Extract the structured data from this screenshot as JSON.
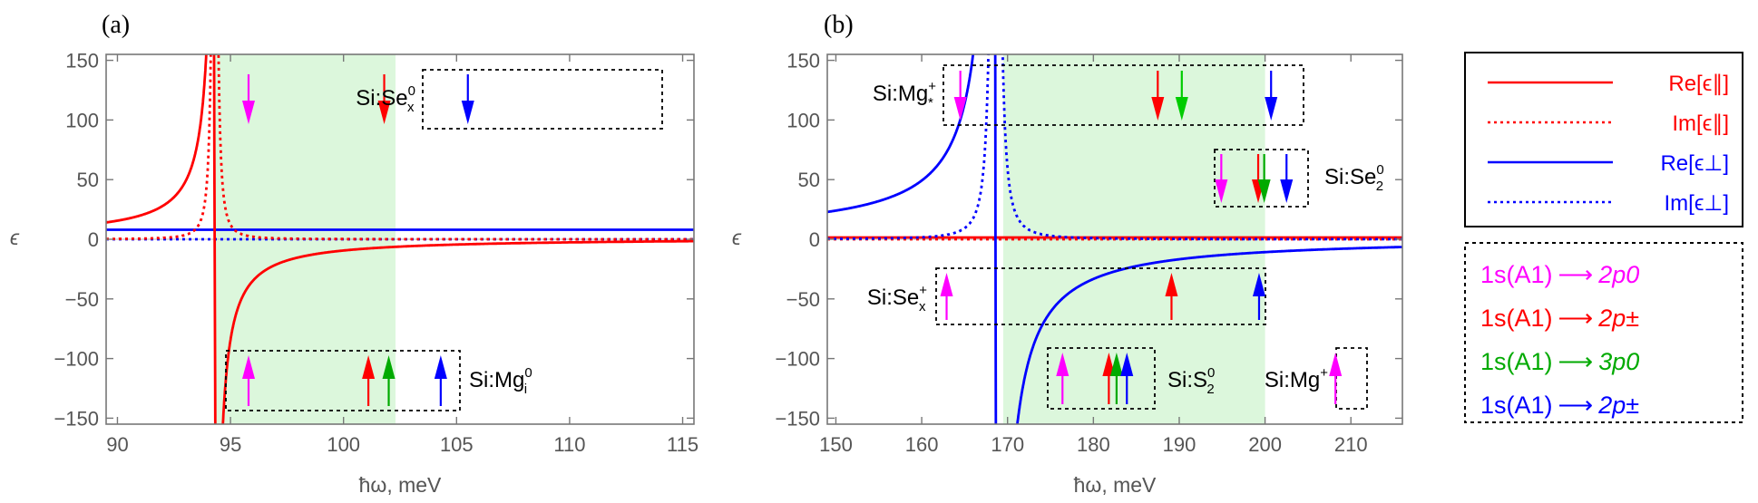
{
  "chart_data": [
    {
      "panel": "(a)",
      "type": "line",
      "xlabel": "ħω, meV",
      "ylabel": "ϵ",
      "xlim": [
        89.5,
        115.5
      ],
      "ylim": [
        -155,
        155
      ],
      "xticks": [
        90,
        95,
        100,
        105,
        110,
        115
      ],
      "yticks": [
        -150,
        -100,
        -50,
        0,
        50,
        100,
        150
      ],
      "shaded_region": [
        94.3,
        102.3
      ],
      "resonance": {
        "omega0": 94.3,
        "gamma": 0.2,
        "re_base_parallel": 1.0,
        "amplitude_parallel": 1.3,
        "re_perp": 8.0,
        "im_perp": 0.0
      },
      "series": [
        {
          "name": "Re[ϵ∥]",
          "color": "#ff0000",
          "dash": "solid"
        },
        {
          "name": "Im[ϵ∥]",
          "color": "#ff0000",
          "dash": "dotted"
        },
        {
          "name": "Re[ϵ⊥]",
          "color": "#0000ff",
          "dash": "solid"
        },
        {
          "name": "Im[ϵ⊥]",
          "color": "#0000ff",
          "dash": "dotted"
        }
      ],
      "annotations": [
        {
          "label": "Si:Se",
          "sub": "x",
          "sup": "0",
          "arrows": [
            {
              "x": 95.8,
              "dir": "down",
              "color": "#ff00ff"
            },
            {
              "x": 101.8,
              "dir": "down",
              "color": "#ff0000"
            },
            {
              "x": 105.5,
              "dir": "down",
              "color": "#0000ff"
            }
          ]
        },
        {
          "label": "Si:Mg",
          "sub": "i",
          "sup": "0",
          "arrows": [
            {
              "x": 95.8,
              "dir": "up",
              "color": "#ff00ff"
            },
            {
              "x": 101.1,
              "dir": "up",
              "color": "#ff0000"
            },
            {
              "x": 102.0,
              "dir": "up",
              "color": "#00aa00"
            },
            {
              "x": 104.3,
              "dir": "up",
              "color": "#0000ff"
            }
          ]
        }
      ]
    },
    {
      "panel": "(b)",
      "type": "line",
      "xlabel": "ħω, meV",
      "ylabel": "ϵ",
      "xlim": [
        149,
        216
      ],
      "ylim": [
        -155,
        155
      ],
      "xticks": [
        150,
        160,
        170,
        180,
        190,
        200,
        210
      ],
      "yticks": [
        -150,
        -100,
        -50,
        0,
        50,
        100,
        150
      ],
      "shaded_region": [
        169.5,
        200
      ],
      "resonance": {
        "omega0": 168.6,
        "gamma": 0.6,
        "re_base_perp": 1.0,
        "amplitude_perp": 4.8,
        "re_parallel": 1.5,
        "im_parallel": 0.0
      },
      "series": [
        {
          "name": "Re[ϵ∥]",
          "color": "#ff0000",
          "dash": "solid"
        },
        {
          "name": "Im[ϵ∥]",
          "color": "#ff0000",
          "dash": "dotted"
        },
        {
          "name": "Re[ϵ⊥]",
          "color": "#0000ff",
          "dash": "solid"
        },
        {
          "name": "Im[ϵ⊥]",
          "color": "#0000ff",
          "dash": "dotted"
        }
      ],
      "annotations": [
        {
          "label": "Si:Mg",
          "sub": "*",
          "sup": "+",
          "arrows": [
            {
              "x": 164.5,
              "dir": "down",
              "color": "#ff00ff"
            },
            {
              "x": 187.5,
              "dir": "down",
              "color": "#ff0000"
            },
            {
              "x": 190.3,
              "dir": "down",
              "color": "#00cc00"
            },
            {
              "x": 200.7,
              "dir": "down",
              "color": "#0000ff"
            }
          ]
        },
        {
          "label": "Si:Se",
          "sub": "2",
          "sup": "0",
          "arrows": [
            {
              "x": 194.9,
              "dir": "down",
              "color": "#ff00ff"
            },
            {
              "x": 199.2,
              "dir": "down",
              "color": "#ff0000"
            },
            {
              "x": 199.9,
              "dir": "down",
              "color": "#00aa00"
            },
            {
              "x": 202.5,
              "dir": "down",
              "color": "#0000ff"
            }
          ]
        },
        {
          "label": "Si:Se",
          "sub": "x",
          "sup": "+",
          "arrows": [
            {
              "x": 162.9,
              "dir": "up",
              "color": "#ff00ff"
            },
            {
              "x": 189.1,
              "dir": "up",
              "color": "#ff0000"
            },
            {
              "x": 199.3,
              "dir": "up",
              "color": "#0000ff"
            }
          ]
        },
        {
          "label": "Si:S",
          "sub": "2",
          "sup": "0",
          "arrows": [
            {
              "x": 176.4,
              "dir": "up",
              "color": "#ff00ff"
            },
            {
              "x": 181.8,
              "dir": "up",
              "color": "#ff0000"
            },
            {
              "x": 182.7,
              "dir": "up",
              "color": "#00aa00"
            },
            {
              "x": 183.9,
              "dir": "up",
              "color": "#0000ff"
            }
          ]
        },
        {
          "label": "Si:Mg",
          "sub": "",
          "sup": "+",
          "arrows": [
            {
              "x": 208.2,
              "dir": "up",
              "color": "#ff00ff"
            }
          ]
        }
      ]
    }
  ],
  "legend": {
    "lines": [
      {
        "label": "Re[ϵ∥]",
        "color": "#ff0000",
        "dash": "solid"
      },
      {
        "label": "Im[ϵ∥]",
        "color": "#ff0000",
        "dash": "dotted"
      },
      {
        "label": "Re[ϵ⊥]",
        "color": "#0000ff",
        "dash": "solid"
      },
      {
        "label": "Im[ϵ⊥]",
        "color": "#0000ff",
        "dash": "dotted"
      }
    ],
    "transitions": [
      {
        "from": "1s(A1)",
        "to": "2p0",
        "color": "#ff00ff"
      },
      {
        "from": "1s(A1)",
        "to": "2p±",
        "color": "#ff0000"
      },
      {
        "from": "1s(A1)",
        "to": "3p0",
        "color": "#00aa00"
      },
      {
        "from": "1s(A1)",
        "to": "2p±",
        "color": "#0000ff"
      }
    ]
  },
  "colors": {
    "shade": "#dcf7dc",
    "axis": "#777777",
    "text_gray": "#555555"
  }
}
